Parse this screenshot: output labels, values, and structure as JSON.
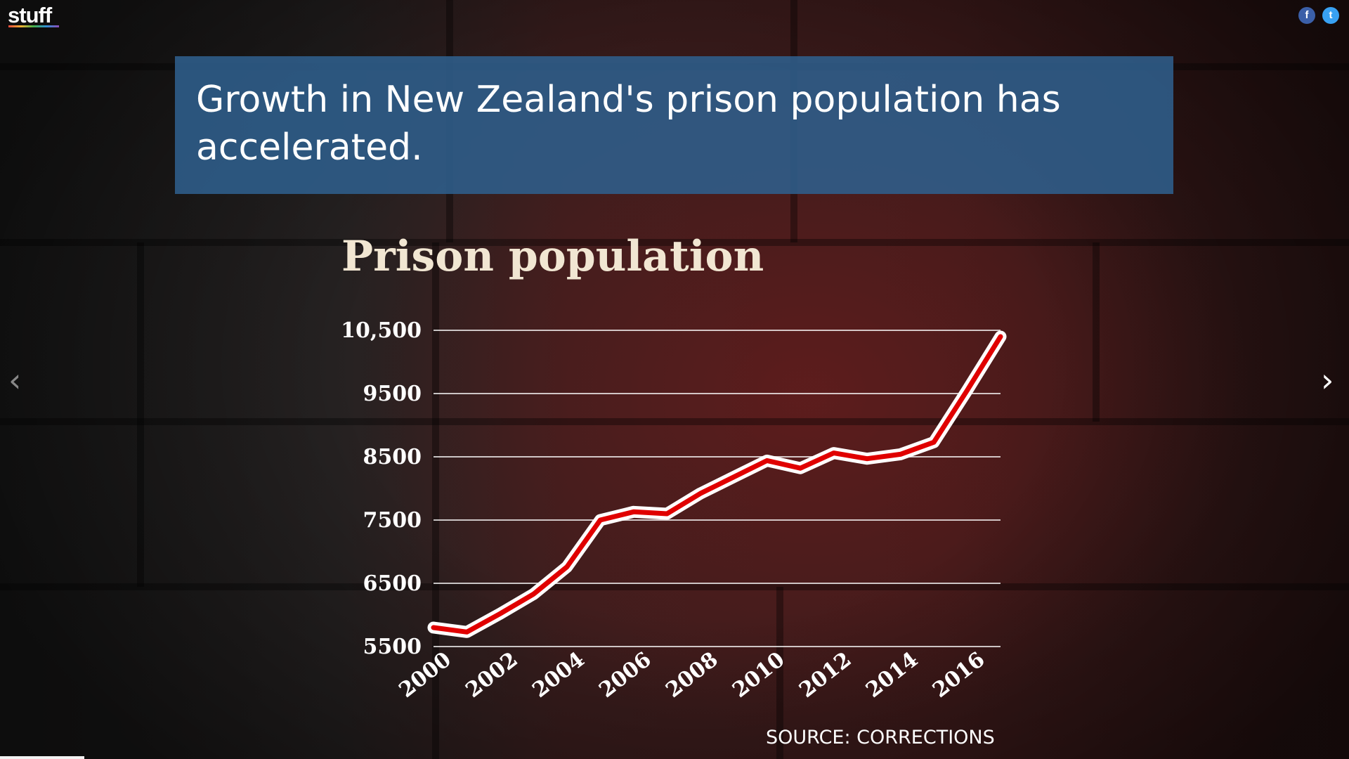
{
  "brand": {
    "logo_text": "stuff"
  },
  "social": {
    "facebook_glyph": "f",
    "twitter_glyph": "t"
  },
  "nav": {
    "prev_glyph": "‹",
    "next_glyph": "›"
  },
  "headline": "Growth in New Zealand's prison population has accelerated.",
  "source": "SOURCE: CORRECTIONS",
  "colors": {
    "line": "#e00000",
    "outline": "#ffffff",
    "headline_bg": "#2f5e8c",
    "title": "#f1e6d2"
  },
  "chart_data": {
    "type": "line",
    "title": "Prison population",
    "xlabel": "",
    "ylabel": "",
    "x": [
      2000,
      2001,
      2002,
      2003,
      2004,
      2005,
      2006,
      2007,
      2008,
      2009,
      2010,
      2011,
      2012,
      2013,
      2014,
      2015,
      2016,
      2017
    ],
    "values": [
      5800,
      5730,
      6020,
      6330,
      6760,
      7500,
      7630,
      7600,
      7920,
      8180,
      8440,
      8320,
      8560,
      8470,
      8540,
      8730,
      9550,
      10400
    ],
    "yticks": [
      "5500",
      "6500",
      "7500",
      "8500",
      "9500",
      "10,500"
    ],
    "ytick_values": [
      5500,
      6500,
      7500,
      8500,
      9500,
      10500
    ],
    "xticks": [
      "2000",
      "2002",
      "2004",
      "2006",
      "2008",
      "2010",
      "2012",
      "2014",
      "2016"
    ],
    "xtick_values": [
      2000,
      2002,
      2004,
      2006,
      2008,
      2010,
      2012,
      2014,
      2016
    ],
    "ylim": [
      5500,
      10500
    ],
    "xlim": [
      2000,
      2017
    ],
    "grid": true,
    "legend": "none"
  }
}
